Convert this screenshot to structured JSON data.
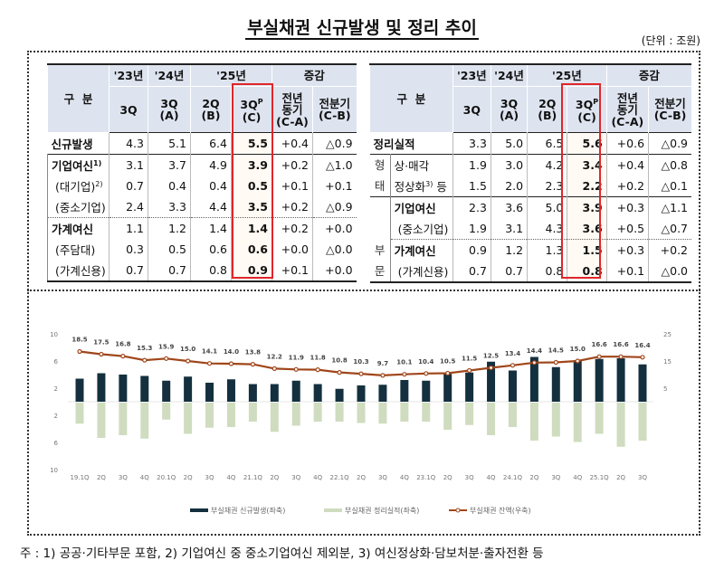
{
  "title": "부실채권 신규발생 및 정리 추이",
  "unit": "(단위 : 조원)",
  "table_header": {
    "category": "구  분",
    "y23": "'23년",
    "y24": "'24년",
    "y25": "'25년",
    "change": "증감",
    "cols": [
      "3Q",
      "3Q\n(A)",
      "2Q\n(B)",
      "3Q\n(C)",
      "전년\n동기\n(C-A)",
      "전분기\n(C-B)"
    ],
    "prelim_mark": "P"
  },
  "left_table": {
    "rows": [
      {
        "label": "신규발생",
        "bold": true,
        "values": [
          "4.3",
          "5.1",
          "6.4",
          "5.5",
          "+0.4",
          "△0.9"
        ]
      },
      {
        "label": "기업여신",
        "sup": "1)",
        "bold": true,
        "values": [
          "3.1",
          "3.7",
          "4.9",
          "3.9",
          "+0.2",
          "△1.0"
        ]
      },
      {
        "label": "(대기업)",
        "sup": "2)",
        "values": [
          "0.7",
          "0.4",
          "0.4",
          "0.5",
          "+0.1",
          "+0.1"
        ]
      },
      {
        "label": "(중소기업)",
        "values": [
          "2.4",
          "3.3",
          "4.4",
          "3.5",
          "+0.2",
          "△0.9"
        ]
      },
      {
        "label": "가계여신",
        "bold": true,
        "values": [
          "1.1",
          "1.2",
          "1.4",
          "1.4",
          "+0.2",
          "+0.0"
        ]
      },
      {
        "label": "(주담대)",
        "values": [
          "0.3",
          "0.5",
          "0.6",
          "0.6",
          "+0.0",
          "△0.0"
        ]
      },
      {
        "label": "(가계신용)",
        "values": [
          "0.7",
          "0.7",
          "0.8",
          "0.9",
          "+0.1",
          "+0.0"
        ]
      }
    ]
  },
  "right_table": {
    "group_type": "형태",
    "group_sector": "부문",
    "rows": [
      {
        "label": "정리실적",
        "bold": true,
        "values": [
          "3.3",
          "5.0",
          "6.5",
          "5.6",
          "+0.6",
          "△0.9"
        ]
      },
      {
        "label": "상·매각",
        "values": [
          "1.9",
          "3.0",
          "4.2",
          "3.4",
          "+0.4",
          "△0.8"
        ]
      },
      {
        "label": "정상화",
        "sup": "3)",
        "suffix": " 등",
        "values": [
          "1.5",
          "2.0",
          "2.3",
          "2.2",
          "+0.2",
          "△0.1"
        ]
      },
      {
        "label": "기업여신",
        "bold": true,
        "values": [
          "2.3",
          "3.6",
          "5.0",
          "3.9",
          "+0.3",
          "△1.1"
        ]
      },
      {
        "label": "(중소기업)",
        "values": [
          "1.9",
          "3.1",
          "4.3",
          "3.6",
          "+0.5",
          "△0.7"
        ]
      },
      {
        "label": "가계여신",
        "bold": true,
        "values": [
          "0.9",
          "1.2",
          "1.3",
          "1.5",
          "+0.3",
          "+0.2"
        ]
      },
      {
        "label": "(가계신용)",
        "values": [
          "0.7",
          "0.7",
          "0.8",
          "0.8",
          "+0.1",
          "△0.0"
        ]
      }
    ]
  },
  "chart_data": {
    "type": "bar+line",
    "categories": [
      "19.1Q",
      "2Q",
      "3Q",
      "4Q",
      "20.1Q",
      "2Q",
      "3Q",
      "4Q",
      "21.1Q",
      "2Q",
      "3Q",
      "4Q",
      "22.1Q",
      "2Q",
      "3Q",
      "4Q",
      "23.1Q",
      "2Q",
      "3Q",
      "4Q",
      "24.1Q",
      "2Q",
      "3Q",
      "4Q",
      "25.1Q",
      "2Q",
      "3Q"
    ],
    "series": [
      {
        "name": "부실채권 신규발생(좌축)",
        "type": "bar",
        "axis": "left",
        "color": "#14303f",
        "values": [
          3.4,
          4.2,
          4.0,
          3.8,
          3.1,
          3.7,
          2.8,
          3.3,
          2.6,
          2.6,
          3.1,
          2.6,
          1.9,
          2.4,
          2.5,
          3.2,
          3.1,
          4.1,
          4.3,
          5.9,
          4.6,
          6.6,
          5.1,
          6.1,
          6.3,
          6.4,
          5.5
        ]
      },
      {
        "name": "부실채권 정리실적(좌축)",
        "type": "bar",
        "axis": "left",
        "color": "#cfdcbf",
        "values": [
          3.1,
          5.2,
          4.8,
          5.3,
          2.5,
          4.6,
          3.7,
          3.6,
          2.8,
          4.3,
          3.4,
          2.8,
          2.8,
          3.0,
          3.1,
          2.8,
          2.8,
          4.0,
          3.3,
          4.8,
          3.6,
          5.6,
          5.0,
          5.8,
          4.6,
          6.5,
          5.6
        ]
      },
      {
        "name": "부실채권 잔액(우축)",
        "type": "line",
        "axis": "right",
        "color": "#a0461a",
        "values": [
          18.5,
          17.5,
          16.8,
          15.3,
          15.9,
          15.0,
          14.1,
          14.0,
          13.8,
          12.2,
          11.9,
          11.8,
          10.8,
          10.3,
          9.7,
          10.1,
          10.4,
          10.5,
          11.5,
          12.5,
          13.4,
          14.4,
          14.5,
          15.0,
          16.6,
          16.6,
          16.4
        ]
      }
    ],
    "left_ticks": [
      "10",
      "6",
      "2",
      "2",
      "6",
      "10"
    ],
    "left_tick_values": [
      10,
      6,
      2,
      -2,
      -6,
      -10
    ],
    "right_ticks": [
      "25",
      "15",
      "5"
    ],
    "right_tick_values": [
      25,
      15,
      5
    ],
    "ylim_left": [
      -10,
      10
    ],
    "ylim_right": [
      -25,
      25
    ],
    "legend_position": "bottom"
  },
  "footnote": "주 : 1) 공공·기타부문 포함, 2) 기업여신 중 중소기업여신 제외분, 3) 여신정상화·담보처분·출자전환 등"
}
